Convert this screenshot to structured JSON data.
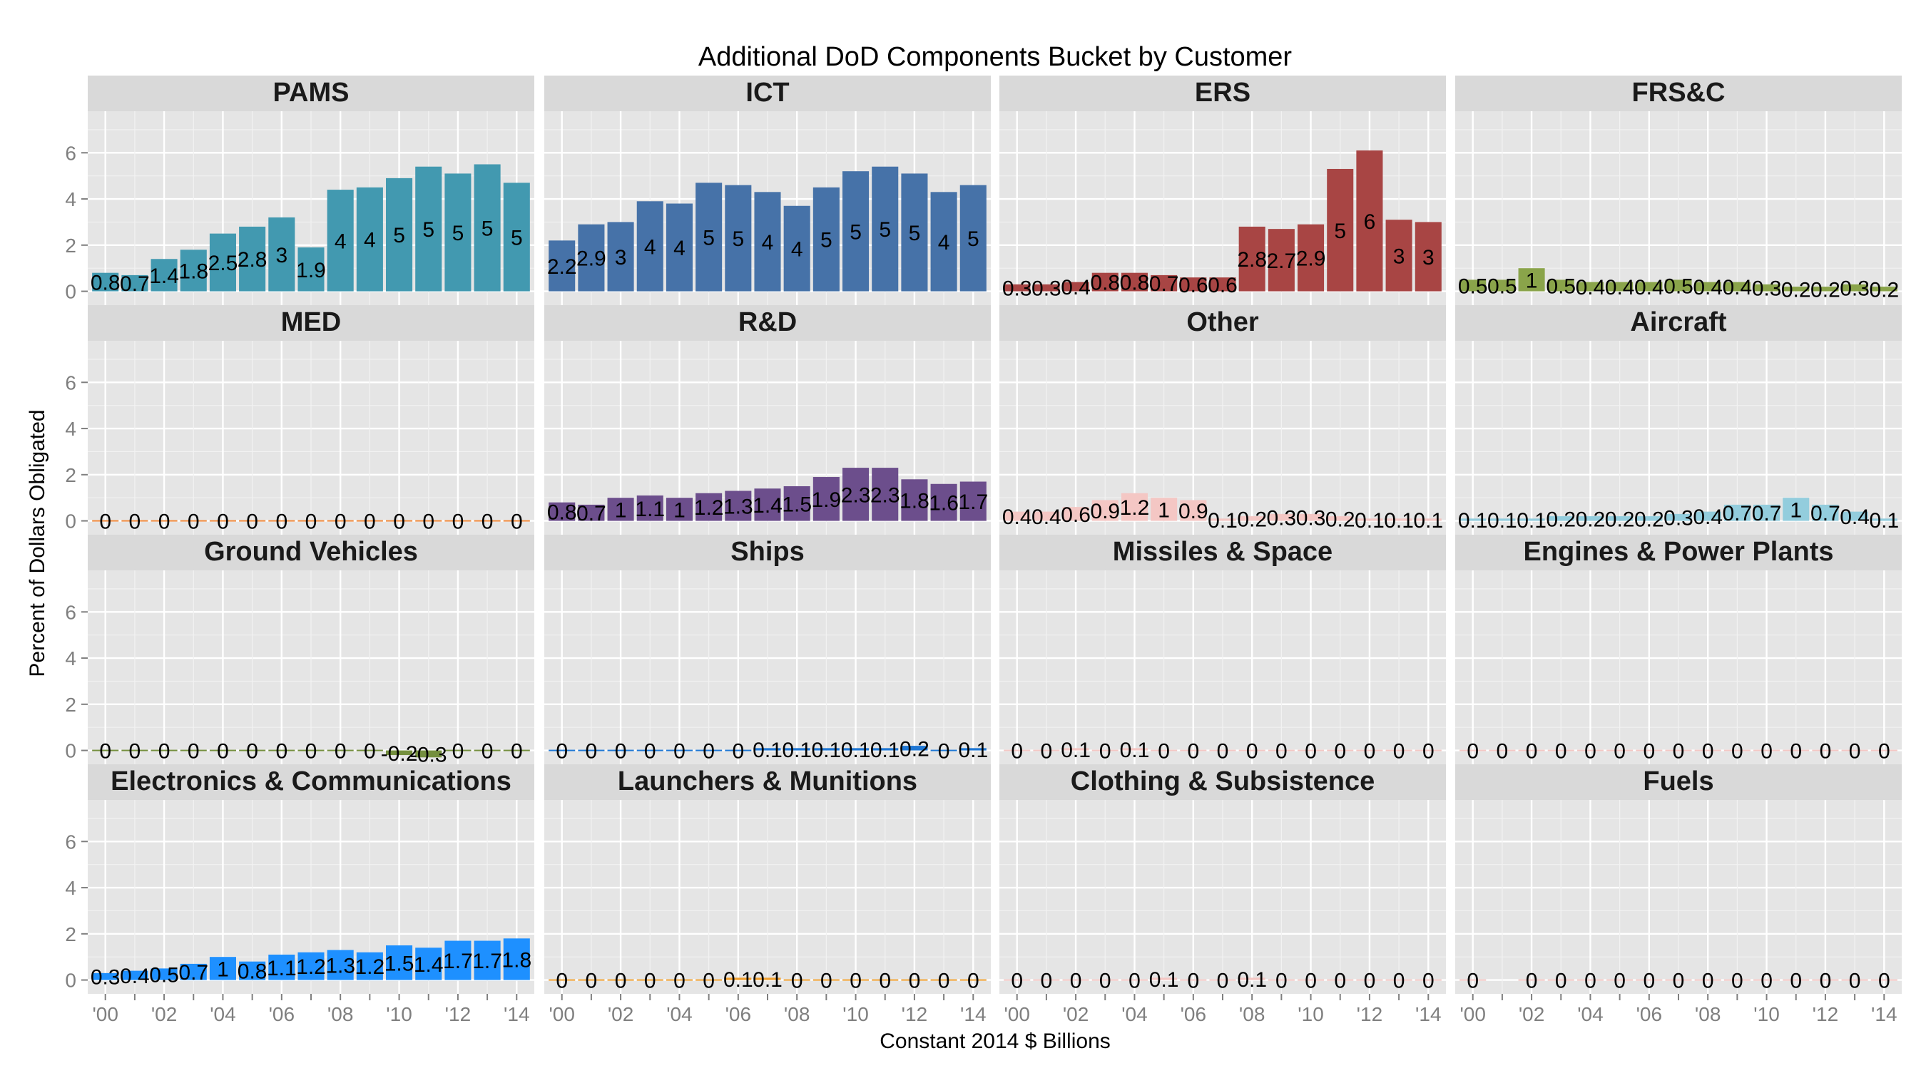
{
  "chart_data": {
    "type": "bar",
    "title": "Additional DoD Components Bucket by Customer",
    "xlabel": "Constant 2014 $ Billions",
    "ylabel": "Percent of Dollars Obligated",
    "ylim": [
      -0.6,
      7.8
    ],
    "y_ticks": [
      0,
      2,
      4,
      6
    ],
    "x": [
      "2000",
      "2001",
      "2002",
      "2003",
      "2004",
      "2005",
      "2006",
      "2007",
      "2008",
      "2009",
      "2010",
      "2011",
      "2012",
      "2013",
      "2014"
    ],
    "x_tick_labels": [
      "'00",
      "'02",
      "'04",
      "'06",
      "'08",
      "'10",
      "'12",
      "'14"
    ],
    "grid": true,
    "legend": "none",
    "facets": [
      {
        "name": "PAMS",
        "color": "#4299B0",
        "values": [
          0.8,
          0.7,
          1.4,
          1.8,
          2.5,
          2.8,
          3.2,
          1.9,
          4.4,
          4.5,
          4.9,
          5.4,
          5.1,
          5.5,
          4.7
        ],
        "labels": [
          "0.8",
          "0.7",
          "1.4",
          "1.8",
          "2.5",
          "2.8",
          "3",
          "1.9",
          "4",
          "4",
          "5",
          "5",
          "5",
          "5",
          "5"
        ]
      },
      {
        "name": "ICT",
        "color": "#4672A8",
        "values": [
          2.2,
          2.9,
          3.0,
          3.9,
          3.8,
          4.7,
          4.6,
          4.3,
          3.7,
          4.5,
          5.2,
          5.4,
          5.1,
          4.3,
          4.6
        ],
        "labels": [
          "2.2",
          "2.9",
          "3",
          "4",
          "4",
          "5",
          "5",
          "4",
          "4",
          "5",
          "5",
          "5",
          "5",
          "4",
          "5"
        ]
      },
      {
        "name": "ERS",
        "color": "#A84544",
        "values": [
          0.3,
          0.3,
          0.4,
          0.8,
          0.8,
          0.7,
          0.6,
          0.6,
          2.8,
          2.7,
          2.9,
          5.3,
          6.1,
          3.1,
          3.0
        ],
        "labels": [
          "0.3",
          "0.3",
          "0.4",
          "0.8",
          "0.8",
          "0.7",
          "0.6",
          "0.6",
          "2.8",
          "2.7",
          "2.9",
          "5",
          "6",
          "3",
          "3"
        ]
      },
      {
        "name": "FRS&C",
        "color": "#8AA44A",
        "values": [
          0.5,
          0.5,
          1.0,
          0.5,
          0.4,
          0.4,
          0.4,
          0.5,
          0.4,
          0.4,
          0.3,
          0.2,
          0.2,
          0.3,
          0.2
        ],
        "labels": [
          "0.5",
          "0.5",
          "1",
          "0.5",
          "0.4",
          "0.4",
          "0.4",
          "0.5",
          "0.4",
          "0.4",
          "0.3",
          "0.2",
          "0.2",
          "0.3",
          "0.2"
        ]
      },
      {
        "name": "MED",
        "color": "#F08A3C",
        "values": [
          0,
          0,
          0,
          0,
          0,
          0,
          0,
          0,
          0,
          0,
          0,
          0,
          0,
          0,
          0
        ],
        "labels": [
          "0",
          "0",
          "0",
          "0",
          "0",
          "0",
          "0",
          "0",
          "0",
          "0",
          "0",
          "0",
          "0",
          "0",
          "0"
        ]
      },
      {
        "name": "R&D",
        "color": "#6C4E8C",
        "values": [
          0.8,
          0.7,
          1.0,
          1.1,
          1.0,
          1.2,
          1.3,
          1.4,
          1.5,
          1.9,
          2.3,
          2.3,
          1.8,
          1.6,
          1.7
        ],
        "labels": [
          "0.8",
          "0.7",
          "1",
          "1.1",
          "1",
          "1.2",
          "1.3",
          "1.4",
          "1.5",
          "1.9",
          "2.3",
          "2.3",
          "1.8",
          "1.6",
          "1.7"
        ]
      },
      {
        "name": "Other",
        "color": "#F4C7C4",
        "values": [
          0.4,
          0.4,
          0.6,
          0.9,
          1.2,
          1.0,
          0.9,
          0.1,
          0.2,
          0.3,
          0.3,
          0.2,
          0.1,
          0.1,
          0.1
        ],
        "labels": [
          "0.4",
          "0.4",
          "0.6",
          "0.9",
          "1.2",
          "1",
          "0.9",
          "0.1",
          "0.2",
          "0.3",
          "0.3",
          "0.2",
          "0.1",
          "0.1",
          "0.1"
        ]
      },
      {
        "name": "Aircraft",
        "color": "#93CDDD",
        "values": [
          0.1,
          0.1,
          0.1,
          0.2,
          0.2,
          0.2,
          0.2,
          0.3,
          0.4,
          0.7,
          0.7,
          1.0,
          0.7,
          0.4,
          0.1
        ],
        "labels": [
          "0.1",
          "0.1",
          "0.1",
          "0.2",
          "0.2",
          "0.2",
          "0.2",
          "0.3",
          "0.4",
          "0.7",
          "0.7",
          "1",
          "0.7",
          "0.4",
          "0.1"
        ]
      },
      {
        "name": "Ground Vehicles",
        "color": "#748F3E",
        "values": [
          0,
          0,
          0,
          0,
          0,
          0,
          0,
          0,
          0,
          0,
          -0.2,
          -0.3,
          0,
          0,
          0
        ],
        "labels": [
          "0",
          "0",
          "0",
          "0",
          "0",
          "0",
          "0",
          "0",
          "0",
          "0",
          "-0.2",
          "-0.3",
          "0",
          "0",
          "0"
        ]
      },
      {
        "name": "Ships",
        "color": "#1F77D4",
        "values": [
          0,
          0,
          0,
          0,
          0,
          0,
          0,
          0.1,
          0.1,
          0.1,
          0.1,
          0.1,
          0.2,
          0,
          0.1
        ],
        "labels": [
          "0",
          "0",
          "0",
          "0",
          "0",
          "0",
          "0",
          "0.1",
          "0.1",
          "0.1",
          "0.1",
          "0.1",
          "0.2",
          "0",
          "0.1"
        ]
      },
      {
        "name": "Missiles & Space",
        "color": "#F4C7C4",
        "values": [
          0,
          0,
          0.1,
          0,
          0.1,
          0,
          0,
          0,
          0,
          0,
          0,
          0,
          0,
          0,
          0
        ],
        "labels": [
          "0",
          "0",
          "0.1",
          "0",
          "0.1",
          "0",
          "0",
          "0",
          "0",
          "0",
          "0",
          "0",
          "0",
          "0",
          "0"
        ]
      },
      {
        "name": "Engines & Power Plants",
        "color": "#F4C7C4",
        "values": [
          0,
          0,
          0,
          0,
          0,
          0,
          0,
          0,
          0,
          0,
          0,
          0,
          0,
          0,
          0
        ],
        "labels": [
          "0",
          "0",
          "0",
          "0",
          "0",
          "0",
          "0",
          "0",
          "0",
          "0",
          "0",
          "0",
          "0",
          "0",
          "0"
        ]
      },
      {
        "name": "Electronics & Communications",
        "color": "#1E90FF",
        "values": [
          0.3,
          0.4,
          0.5,
          0.7,
          1.0,
          0.8,
          1.1,
          1.2,
          1.3,
          1.2,
          1.5,
          1.4,
          1.7,
          1.7,
          1.8
        ],
        "labels": [
          "0.3",
          "0.4",
          "0.5",
          "0.7",
          "1",
          "0.8",
          "1.1",
          "1.2",
          "1.3",
          "1.2",
          "1.5",
          "1.4",
          "1.7",
          "1.7",
          "1.8"
        ]
      },
      {
        "name": "Launchers & Munitions",
        "color": "#F0A030",
        "values": [
          0,
          0,
          0,
          0,
          0,
          0,
          0.1,
          0.1,
          0,
          0,
          0,
          0,
          0,
          0,
          0
        ],
        "labels": [
          "0",
          "0",
          "0",
          "0",
          "0",
          "0",
          "0.1",
          "0.1",
          "0",
          "0",
          "0",
          "0",
          "0",
          "0",
          "0"
        ]
      },
      {
        "name": "Clothing & Subsistence",
        "color": "#F4C7C4",
        "values": [
          0,
          0,
          0,
          0,
          0,
          0.1,
          0,
          0,
          0.1,
          0,
          0,
          0,
          0,
          0,
          0
        ],
        "labels": [
          "0",
          "0",
          "0",
          "0",
          "0",
          "0.1",
          "0",
          "0",
          "0.1",
          "0",
          "0",
          "0",
          "0",
          "0",
          "0"
        ]
      },
      {
        "name": "Fuels",
        "color": "#F4C7C4",
        "values": [
          0,
          null,
          0,
          0,
          0,
          0,
          0,
          0,
          0,
          0,
          0,
          0,
          0,
          0,
          0
        ],
        "labels": [
          "0",
          "",
          "0",
          "0",
          "0",
          "0",
          "0",
          "0",
          "0",
          "0",
          "0",
          "0",
          "0",
          "0",
          "0"
        ]
      }
    ]
  }
}
